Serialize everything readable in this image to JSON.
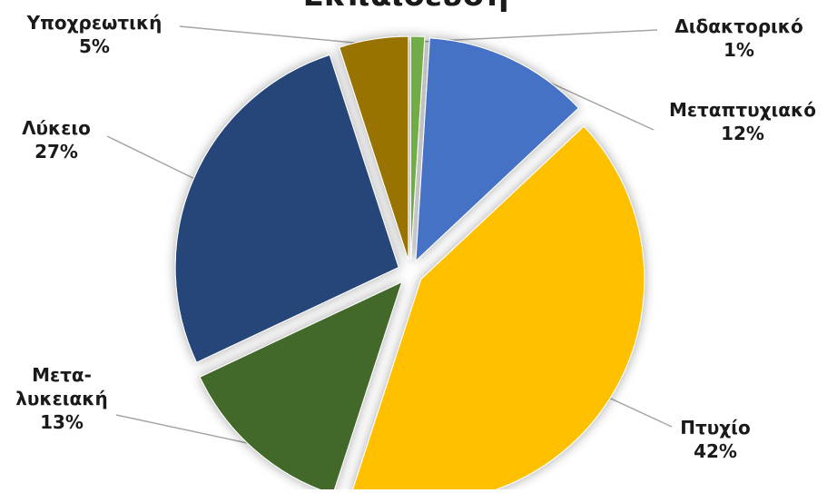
{
  "chart_data": {
    "type": "pie",
    "title": "Εκπαίδευση",
    "exploded": true,
    "data_labels": "category name and percent",
    "legend": "none",
    "slices": [
      {
        "name": "Διδακτορικό",
        "value": 1,
        "percent_label": "1%",
        "color": "#70ad47"
      },
      {
        "name": "Μεταπτυχιακό",
        "value": 12,
        "percent_label": "12%",
        "color": "#4472c4"
      },
      {
        "name": "Πτυχίο",
        "value": 42,
        "percent_label": "42%",
        "color": "#ffc000"
      },
      {
        "name": "Μετα-λυκειακή",
        "name_lines": [
          "Μετα-",
          "λυκειακή"
        ],
        "value": 13,
        "percent_label": "13%",
        "color": "#43682b"
      },
      {
        "name": "Λύκειο",
        "value": 27,
        "percent_label": "27%",
        "color": "#264478"
      },
      {
        "name": "Υποχρεωτική",
        "value": 5,
        "percent_label": "5%",
        "color": "#997300"
      }
    ]
  }
}
